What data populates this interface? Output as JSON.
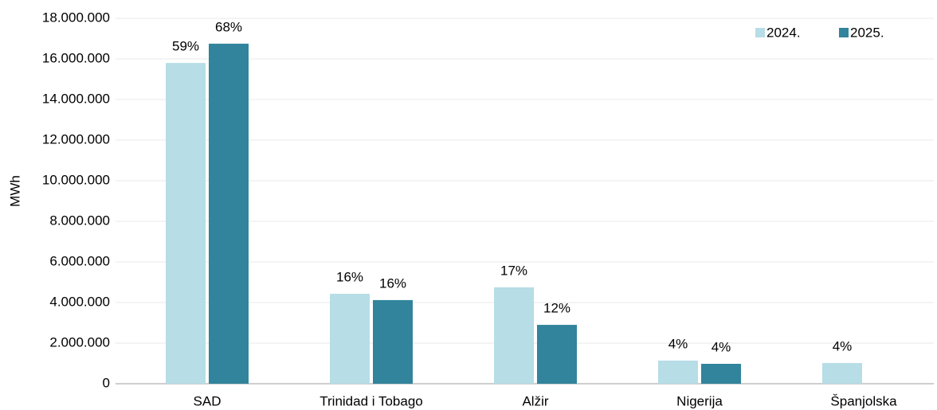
{
  "chart_data": {
    "type": "bar",
    "y_label": "MWh",
    "categories": [
      "SAD",
      "Trinidad i Tobago",
      "Alžir",
      "Nigerija",
      "Španjolska"
    ],
    "series": [
      {
        "name": "2024.",
        "color": "#b7dde6",
        "values": [
          15800000,
          4430000,
          4750000,
          1140000,
          1020000
        ],
        "share_labels": [
          "59%",
          "16%",
          "17%",
          "4%",
          "4%"
        ]
      },
      {
        "name": "2025.",
        "color": "#31849b",
        "values": [
          16750000,
          4120000,
          2900000,
          980000,
          null
        ],
        "share_labels": [
          "68%",
          "16%",
          "12%",
          "4%",
          null
        ]
      }
    ],
    "ylim": [
      0,
      18000000
    ],
    "yticks": [
      0,
      {
        "value": 2000000,
        "label": "2.000.000"
      },
      {
        "value": 4000000,
        "label": "4.000.000"
      },
      {
        "value": 6000000,
        "label": "6.000.000"
      },
      {
        "value": 8000000,
        "label": "8.000.000"
      },
      {
        "value": 10000000,
        "label": "10.000.000"
      },
      {
        "value": 12000000,
        "label": "12.000.000"
      },
      {
        "value": 14000000,
        "label": "14.000.000"
      },
      {
        "value": 16000000,
        "label": "16.000.000"
      },
      {
        "value": 18000000,
        "label": "18.000.000"
      }
    ],
    "grid": true,
    "legend": "top-right"
  }
}
